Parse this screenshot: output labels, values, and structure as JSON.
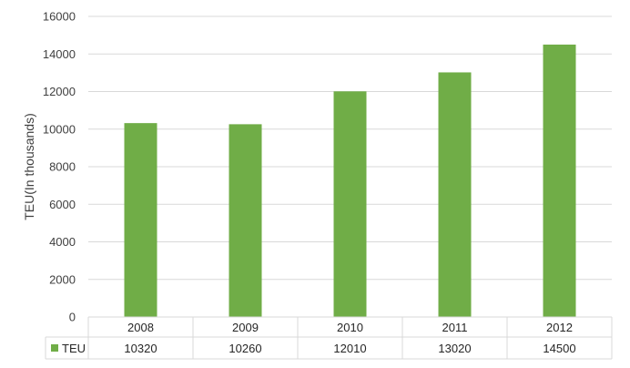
{
  "chart_data": {
    "type": "bar",
    "title": "",
    "xlabel": "",
    "ylabel": "TEU(In thousands)",
    "ylim": [
      0,
      16000
    ],
    "yticks": [
      0,
      2000,
      4000,
      6000,
      8000,
      10000,
      12000,
      14000,
      16000
    ],
    "categories": [
      "2008",
      "2009",
      "2010",
      "2011",
      "2012"
    ],
    "series": [
      {
        "name": "TEU",
        "values": [
          10320,
          10260,
          12010,
          13020,
          14500
        ],
        "color": "#70ad47"
      }
    ],
    "grid": true,
    "legend": "data-table",
    "data_table": true
  }
}
